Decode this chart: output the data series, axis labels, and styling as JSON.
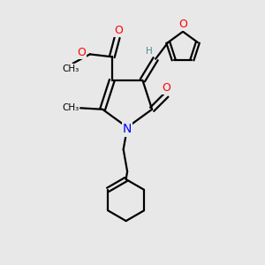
{
  "bg_color": "#e8e8e8",
  "bond_color": "#000000",
  "bond_width": 1.6,
  "atom_colors": {
    "O": "#ff0000",
    "N": "#0000ff",
    "C": "#000000",
    "H": "#4a9090"
  },
  "font_size_atoms": 9,
  "font_size_small": 7.5
}
